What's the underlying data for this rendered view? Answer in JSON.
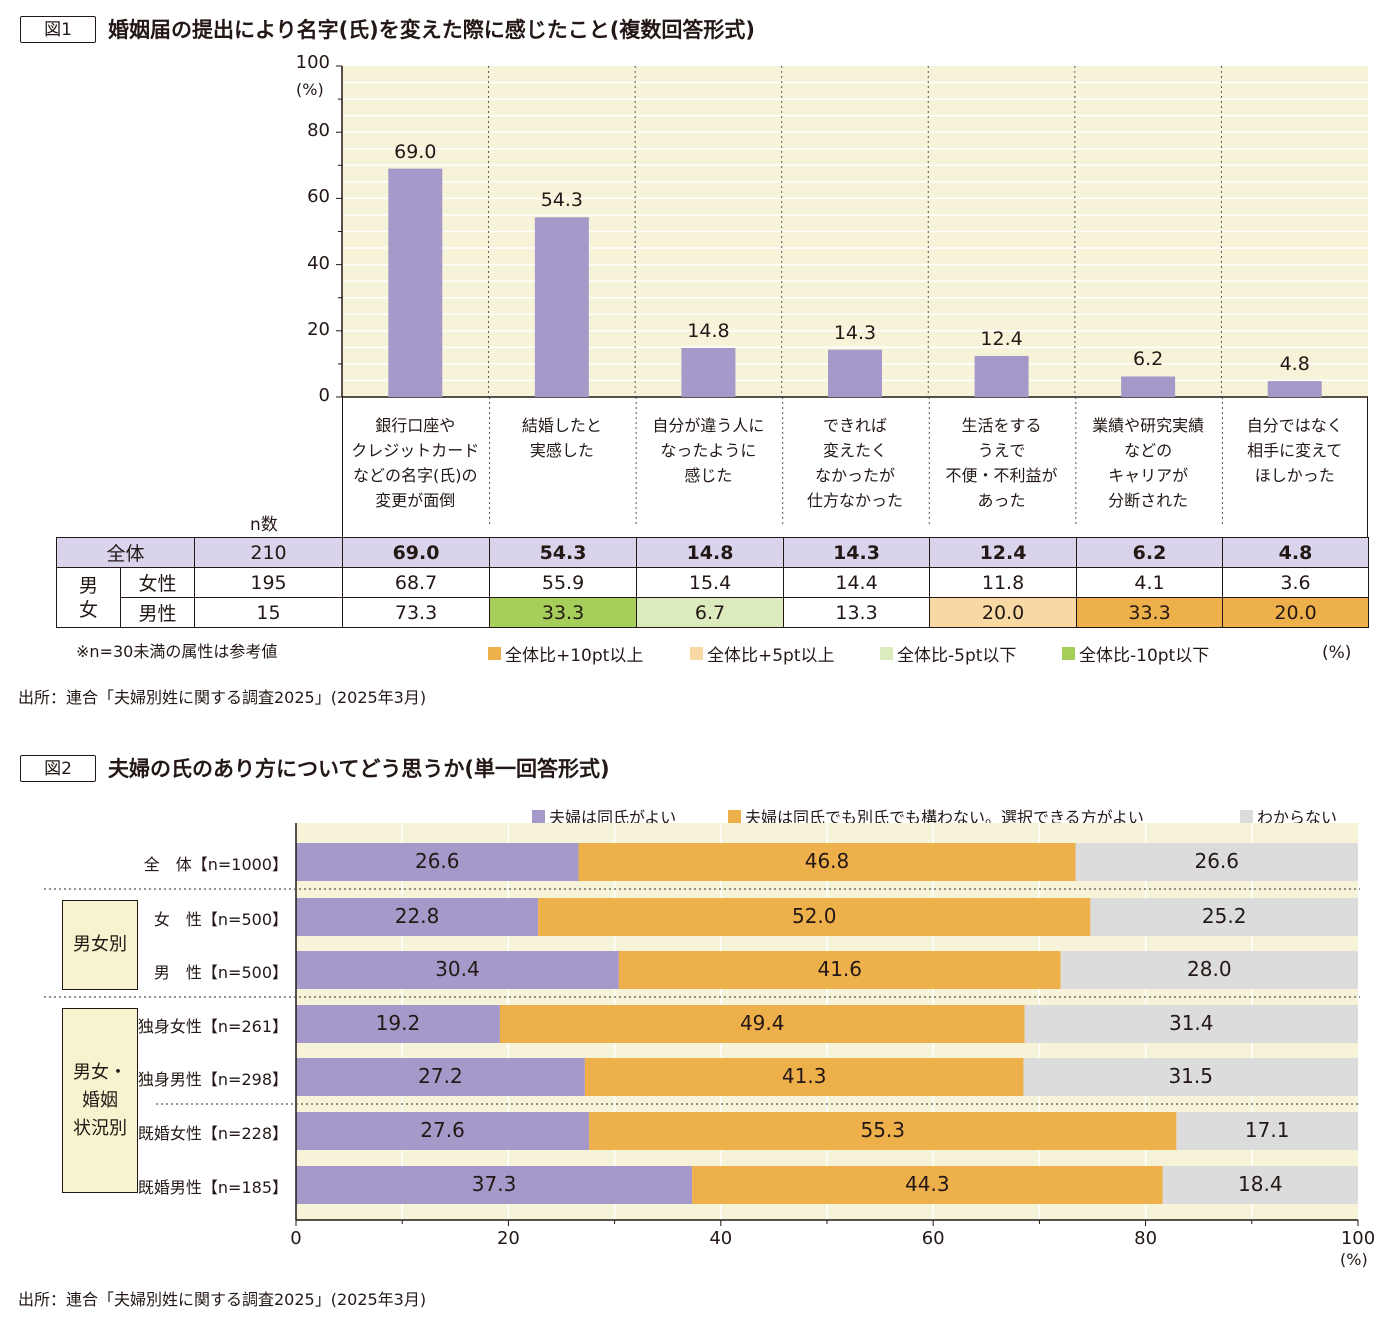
{
  "figure1": {
    "tag": "図1",
    "title": "婚姻届の提出により名字(氏)を変えた際に感じたこと(複数回答形式)",
    "source": "出所：連合「夫婦別姓に関する調査2025」(2025年3月)",
    "note": "※n=30未満の属性は参考値",
    "table_unit": "(%)",
    "n_header": "n数",
    "chart_data": {
      "type": "bar",
      "categories": [
        "銀行口座や\nクレジットカード\nなどの名字(氏)の\n変更が面倒",
        "結婚したと\n実感した",
        "自分が違う人に\nなったように\n感じた",
        "できれば\n変えたく\nなかったが\n仕方なかった",
        "生活をする\nうえで\n不便・不利益が\nあった",
        "業績や研究実績\nなどの\nキャリアが\n分断された",
        "自分ではなく\n相手に変えて\nほしかった"
      ],
      "values": [
        69.0,
        54.3,
        14.8,
        14.3,
        12.4,
        6.2,
        4.8
      ],
      "value_labels": [
        "69.0",
        "54.3",
        "14.8",
        "14.3",
        "12.4",
        "6.2",
        "4.8"
      ],
      "ylim": [
        0,
        100
      ],
      "yticks": [
        "0",
        "20",
        "40",
        "60",
        "80",
        "100"
      ],
      "ylabel": "(%)",
      "bar_color": "#a499c8",
      "plot_background": "#f7f3d8"
    },
    "table": {
      "rows": [
        {
          "group": "",
          "label": "全体",
          "n": "210",
          "values": [
            "69.0",
            "54.3",
            "14.8",
            "14.3",
            "12.4",
            "6.2",
            "4.8"
          ],
          "highlight": [
            "",
            "",
            "",
            "",
            "",
            "",
            ""
          ]
        },
        {
          "group": "男女",
          "label": "女性",
          "n": "195",
          "values": [
            "68.7",
            "55.9",
            "15.4",
            "14.4",
            "11.8",
            "4.1",
            "3.6"
          ],
          "highlight": [
            "",
            "",
            "",
            "",
            "",
            "",
            ""
          ]
        },
        {
          "group": "男女",
          "label": "男性",
          "n": "15",
          "values": [
            "73.3",
            "33.3",
            "6.7",
            "13.3",
            "20.0",
            "33.3",
            "20.0"
          ],
          "highlight": [
            "",
            "minus10",
            "minus5",
            "",
            "plus5",
            "plus10",
            "plus10"
          ]
        }
      ],
      "group_label": "男\n女"
    },
    "legend": [
      {
        "key": "plus10",
        "label": "全体比+10pt以上",
        "color": "#eeb04a"
      },
      {
        "key": "plus5",
        "label": "全体比+5pt以上",
        "color": "#f8d9a4"
      },
      {
        "key": "minus5",
        "label": "全体比-5pt以下",
        "color": "#dcebbd"
      },
      {
        "key": "minus10",
        "label": "全体比-10pt以下",
        "color": "#a5cf5a"
      }
    ],
    "total_row_color": "#d9d4ec"
  },
  "figure2": {
    "tag": "図2",
    "title": "夫婦の氏のあり方についてどう思うか(単一回答形式)",
    "source": "出所：連合「夫婦別姓に関する調査2025」(2025年3月)",
    "chart_data": {
      "type": "bar",
      "orientation": "horizontal",
      "stacked": true,
      "categories": [
        "全　体【n=1000】",
        "女　性【n=500】",
        "男　性【n=500】",
        "独身女性【n=261】",
        "独身男性【n=298】",
        "既婚女性【n=228】",
        "既婚男性【n=185】"
      ],
      "series": [
        {
          "name": "夫婦は同氏がよい",
          "color": "#a499c8",
          "values": [
            26.6,
            22.8,
            30.4,
            19.2,
            27.2,
            27.6,
            37.3
          ],
          "labels": [
            "26.6",
            "22.8",
            "30.4",
            "19.2",
            "27.2",
            "27.6",
            "37.3"
          ]
        },
        {
          "name": "夫婦は同氏でも別氏でも構わない。選択できる方がよい",
          "color": "#eeb04a",
          "values": [
            46.8,
            52.0,
            41.6,
            49.4,
            41.3,
            55.3,
            44.3
          ],
          "labels": [
            "46.8",
            "52.0",
            "41.6",
            "49.4",
            "41.3",
            "55.3",
            "44.3"
          ]
        },
        {
          "name": "わからない",
          "color": "#dcdcdc",
          "values": [
            26.6,
            25.2,
            28.0,
            31.4,
            31.5,
            17.1,
            18.4
          ],
          "labels": [
            "26.6",
            "25.2",
            "28.0",
            "31.4",
            "31.5",
            "17.1",
            "18.4"
          ]
        }
      ],
      "xlim": [
        0,
        100
      ],
      "xticks": [
        "0",
        "20",
        "40",
        "60",
        "80",
        "100"
      ],
      "xlabel": "(%)",
      "plot_background": "#f7f3d8"
    },
    "groups": [
      {
        "label": "男女別"
      },
      {
        "label": "男女・\n婚姻\n状況別"
      }
    ]
  }
}
